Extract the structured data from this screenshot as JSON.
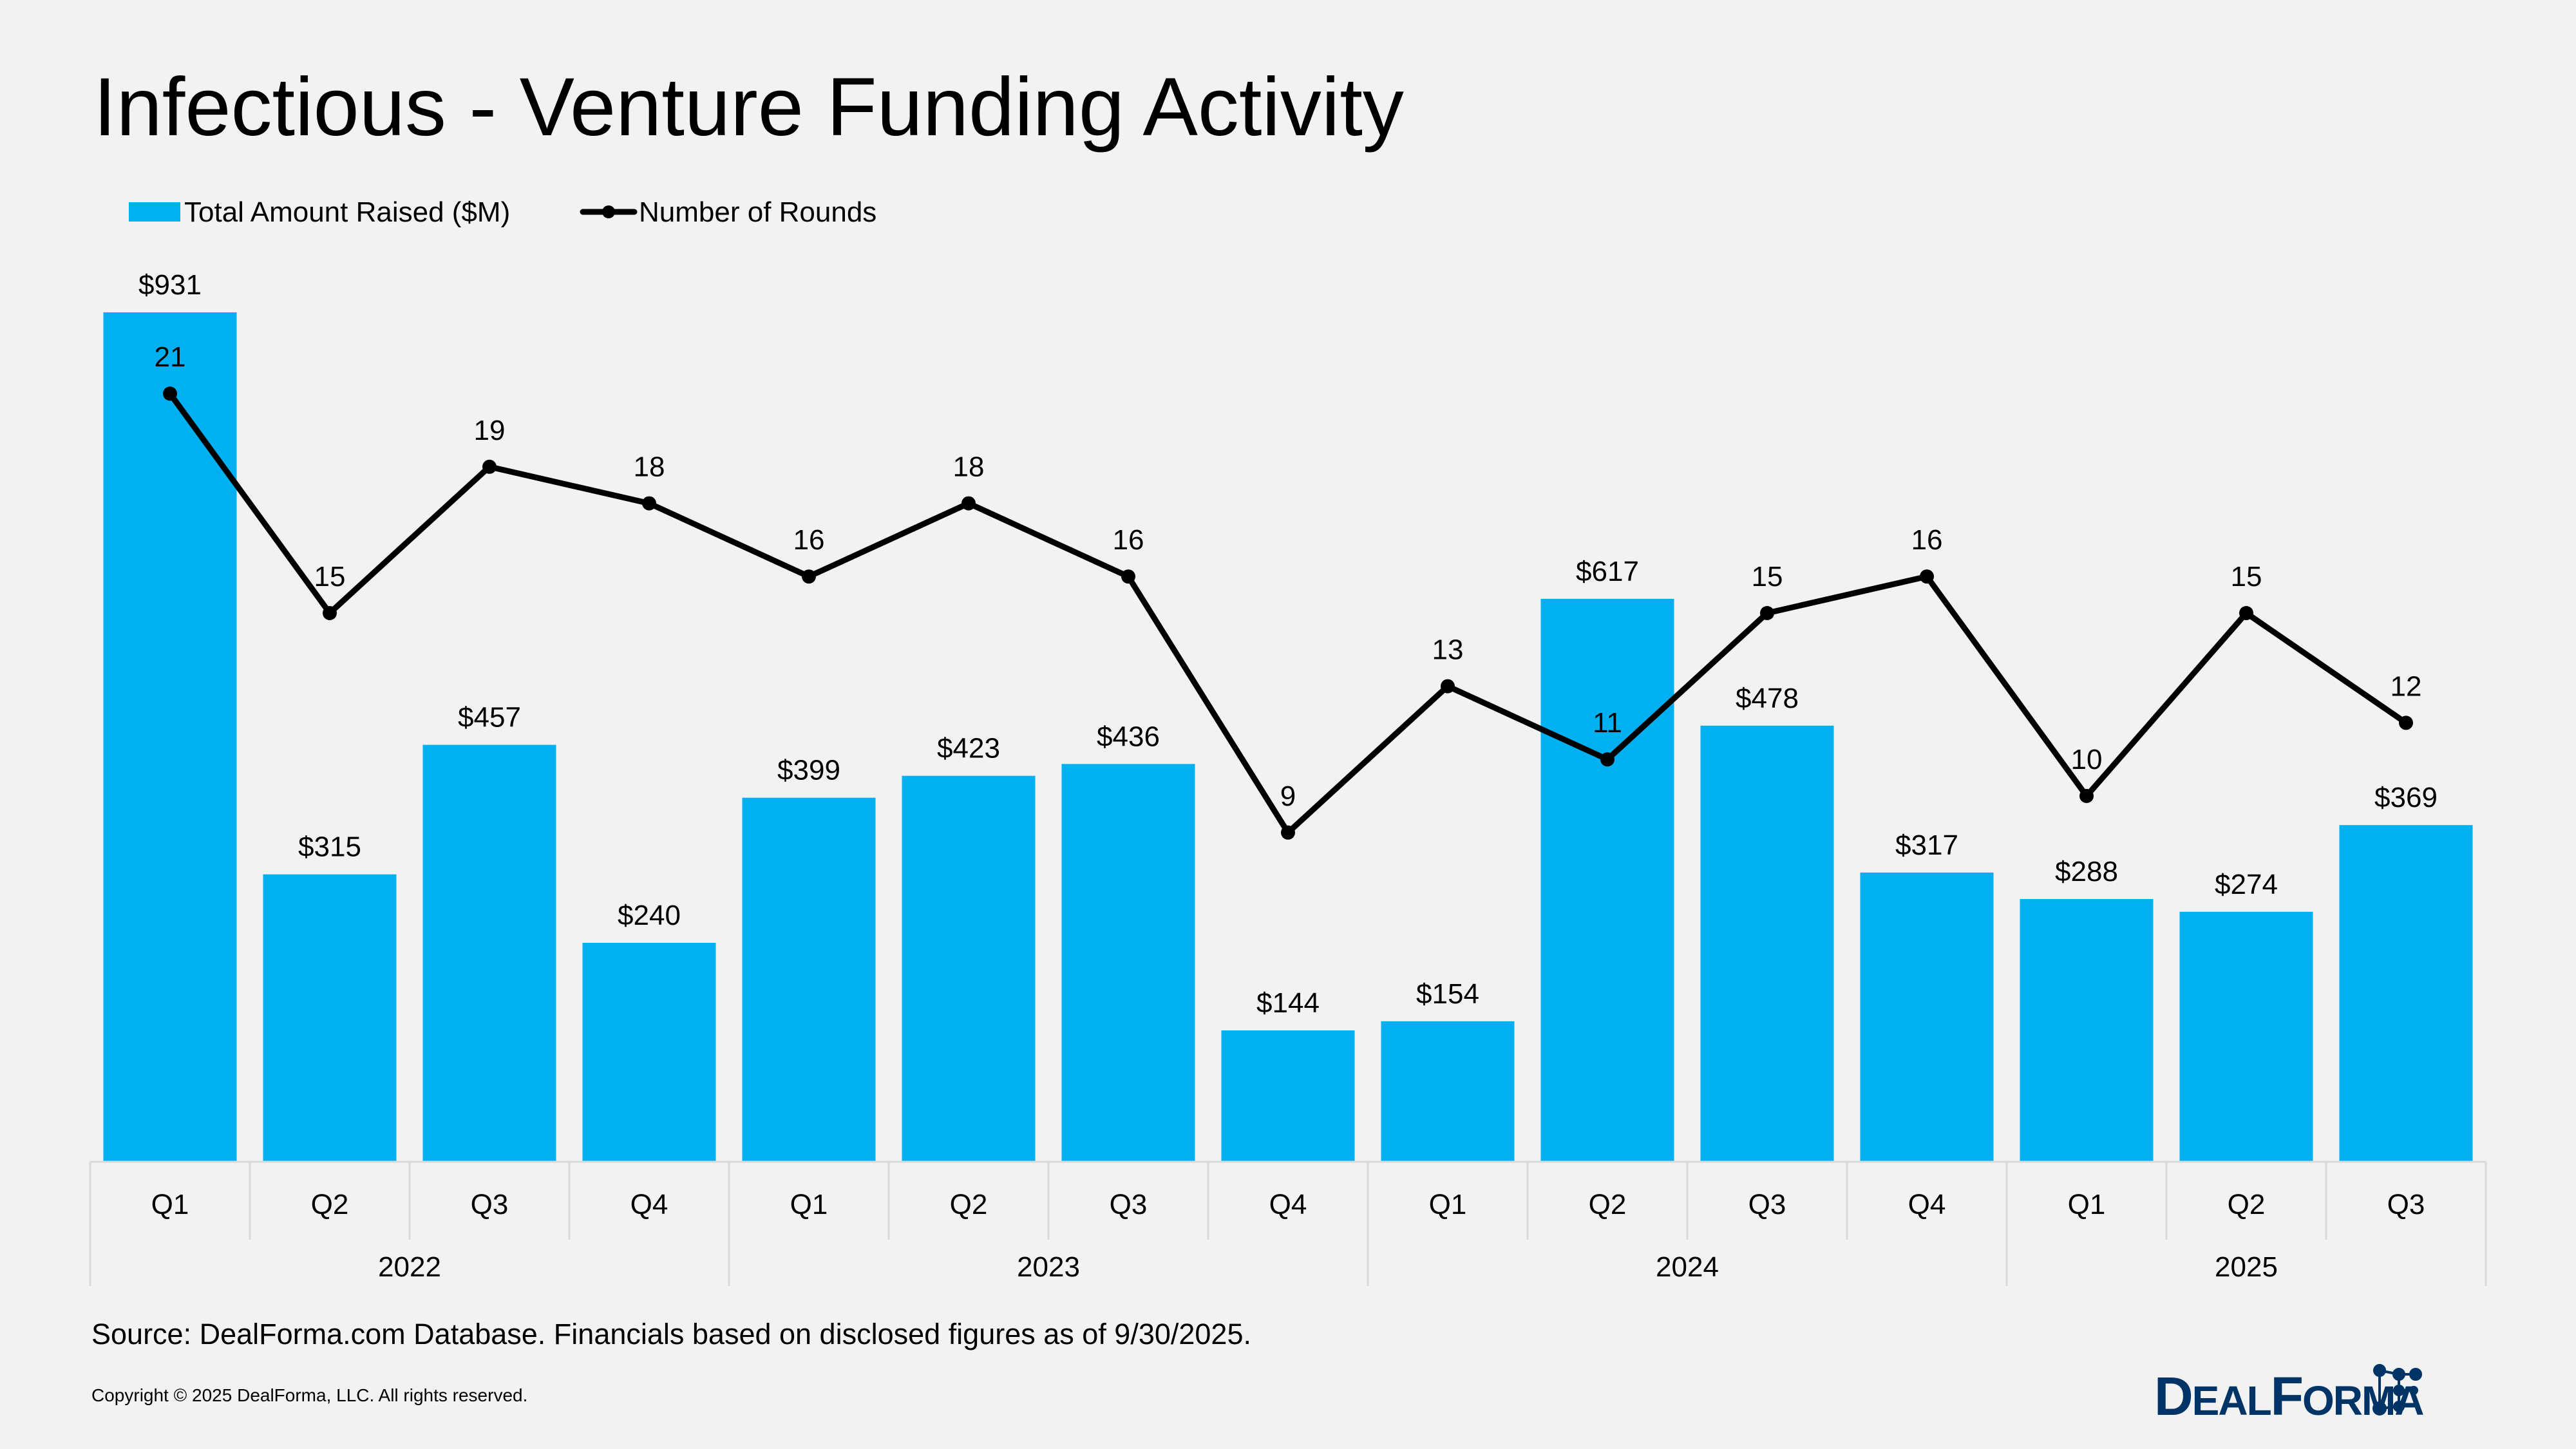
{
  "title": "Infectious - Venture Funding Activity",
  "source": "Source: DealForma.com Database. Financials based on disclosed figures as of 9/30/2025.",
  "copyright": "Copyright © 2025 DealForma, LLC. All rights reserved.",
  "logo_text": "DealForma",
  "colors": {
    "bar": "#00b0f0",
    "line": "#000000",
    "background": "#f2f2f2",
    "logo": "#003366"
  },
  "chart_data": {
    "type": "bar+line",
    "title": "Infectious - Venture Funding Activity",
    "legend_position": "top-left",
    "grid": false,
    "categories": [
      "Q1",
      "Q2",
      "Q3",
      "Q4",
      "Q1",
      "Q2",
      "Q3",
      "Q4",
      "Q1",
      "Q2",
      "Q3",
      "Q4",
      "Q1",
      "Q2",
      "Q3"
    ],
    "groups": [
      {
        "label": "2022",
        "count": 4
      },
      {
        "label": "2023",
        "count": 4
      },
      {
        "label": "2024",
        "count": 4
      },
      {
        "label": "2025",
        "count": 3
      }
    ],
    "series": [
      {
        "name": "Total Amount Raised ($M)",
        "type": "bar",
        "color": "#00b0f0",
        "values": [
          931,
          315,
          457,
          240,
          399,
          423,
          436,
          144,
          154,
          617,
          478,
          317,
          288,
          274,
          369
        ],
        "labels": [
          "$931",
          "$315",
          "$457",
          "$240",
          "$399",
          "$423",
          "$436",
          "$144",
          "$154",
          "$617",
          "$478",
          "$317",
          "$288",
          "$274",
          "$369"
        ]
      },
      {
        "name": "Number of Rounds",
        "type": "line",
        "color": "#000000",
        "values": [
          21,
          15,
          19,
          18,
          16,
          18,
          16,
          9,
          13,
          11,
          15,
          16,
          10,
          15,
          12
        ],
        "labels": [
          "21",
          "15",
          "19",
          "18",
          "16",
          "18",
          "16",
          "9",
          "13",
          "11",
          "15",
          "16",
          "10",
          "15",
          "12"
        ]
      }
    ]
  }
}
